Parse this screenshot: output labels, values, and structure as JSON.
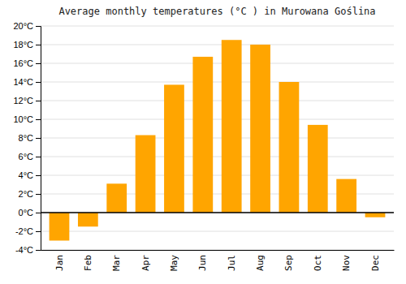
{
  "chart_data": {
    "type": "bar",
    "title": "Average monthly temperatures (°C ) in Murowana Goślina",
    "categories": [
      "Jan",
      "Feb",
      "Mar",
      "Apr",
      "May",
      "Jun",
      "Jul",
      "Aug",
      "Sep",
      "Oct",
      "Nov",
      "Dec"
    ],
    "values": [
      -3.0,
      -1.5,
      3.1,
      8.3,
      13.7,
      16.7,
      18.5,
      18.0,
      14.0,
      9.4,
      3.6,
      -0.5
    ],
    "color": "#FFA500",
    "ylim": [
      -4,
      20
    ],
    "yticks": [
      {
        "value": -4,
        "label": "-4°C"
      },
      {
        "value": -2,
        "label": "-2°C"
      },
      {
        "value": 0,
        "label": "0°C"
      },
      {
        "value": 2,
        "label": "2°C"
      },
      {
        "value": 4,
        "label": "4°C"
      },
      {
        "value": 6,
        "label": "6°C"
      },
      {
        "value": 8,
        "label": "8°C"
      },
      {
        "value": 10,
        "label": "10°C"
      },
      {
        "value": 12,
        "label": "12°C"
      },
      {
        "value": 14,
        "label": "14°C"
      },
      {
        "value": 16,
        "label": "16°C"
      },
      {
        "value": 18,
        "label": "18°C"
      },
      {
        "value": 20,
        "label": "20°C"
      }
    ],
    "grid": true
  }
}
